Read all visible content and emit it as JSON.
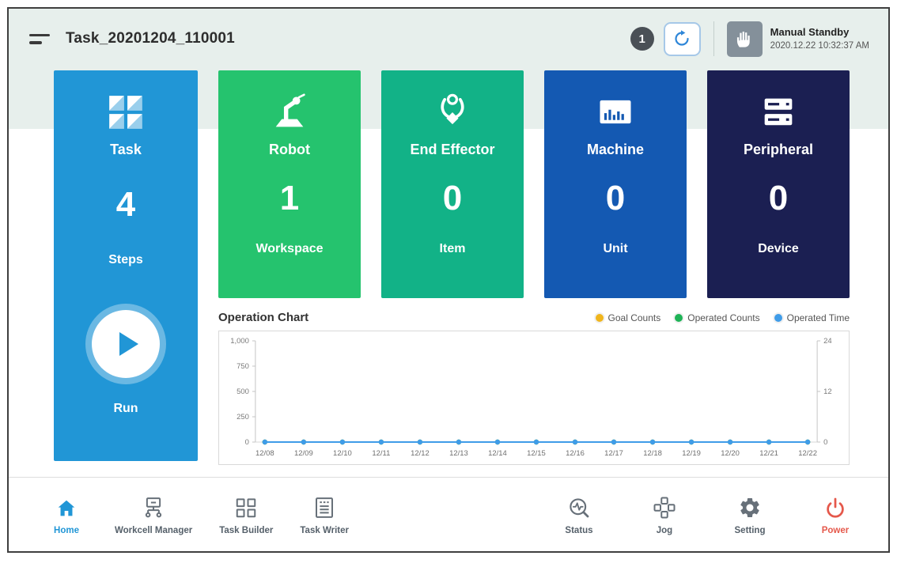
{
  "header": {
    "title": "Task_20201204_110001",
    "badge_count": "1",
    "mode": {
      "label": "Manual Standby",
      "timestamp": "2020.12.22 10:32:37 AM"
    }
  },
  "cards": {
    "task": {
      "label": "Task",
      "value": "4",
      "sub_label": "Steps",
      "run_label": "Run",
      "color": "#2196d6"
    },
    "robot": {
      "label": "Robot",
      "value": "1",
      "sub_label": "Workspace",
      "color": "#25c36e"
    },
    "end_effector": {
      "label": "End Effector",
      "value": "0",
      "sub_label": "Item",
      "color": "#12b287"
    },
    "machine": {
      "label": "Machine",
      "value": "0",
      "sub_label": "Unit",
      "color": "#1459b2"
    },
    "peripheral": {
      "label": "Peripheral",
      "value": "0",
      "sub_label": "Device",
      "color": "#1b1f52"
    }
  },
  "chart_section": {
    "title": "Operation Chart",
    "legend": [
      {
        "label": "Goal Counts",
        "color": "#f0b51c"
      },
      {
        "label": "Operated Counts",
        "color": "#1eb356"
      },
      {
        "label": "Operated Time",
        "color": "#3f9ce8"
      }
    ]
  },
  "chart_data": {
    "type": "line",
    "title": "Operation Chart",
    "x": [
      "12/08",
      "12/09",
      "12/10",
      "12/11",
      "12/12",
      "12/13",
      "12/14",
      "12/15",
      "12/16",
      "12/17",
      "12/18",
      "12/19",
      "12/20",
      "12/21",
      "12/22"
    ],
    "series": [
      {
        "name": "Goal Counts",
        "color": "#f0b51c",
        "axis": "left",
        "values": [
          0,
          0,
          0,
          0,
          0,
          0,
          0,
          0,
          0,
          0,
          0,
          0,
          0,
          0,
          0
        ]
      },
      {
        "name": "Operated Counts",
        "color": "#1eb356",
        "axis": "left",
        "values": [
          0,
          0,
          0,
          0,
          0,
          0,
          0,
          0,
          0,
          0,
          0,
          0,
          0,
          0,
          0
        ]
      },
      {
        "name": "Operated Time",
        "color": "#3f9ce8",
        "axis": "right",
        "values": [
          0,
          0,
          0,
          0,
          0,
          0,
          0,
          0,
          0,
          0,
          0,
          0,
          0,
          0,
          0
        ]
      }
    ],
    "left_axis": {
      "range": [
        0,
        1000
      ],
      "ticks": [
        0,
        250,
        500,
        750,
        1000
      ],
      "labels": [
        "0",
        "250",
        "500",
        "750",
        "1,000"
      ]
    },
    "right_axis": {
      "range": [
        0,
        24
      ],
      "ticks": [
        0,
        12,
        24
      ],
      "labels": [
        "0",
        "12",
        "24"
      ]
    },
    "grid": false,
    "legend_position": "top-right"
  },
  "nav": {
    "items": [
      {
        "label": "Home",
        "active": true
      },
      {
        "label": "Workcell Manager"
      },
      {
        "label": "Task Builder"
      },
      {
        "label": "Task Writer"
      },
      {
        "label": "Status"
      },
      {
        "label": "Jog"
      },
      {
        "label": "Setting"
      },
      {
        "label": "Power"
      }
    ]
  }
}
